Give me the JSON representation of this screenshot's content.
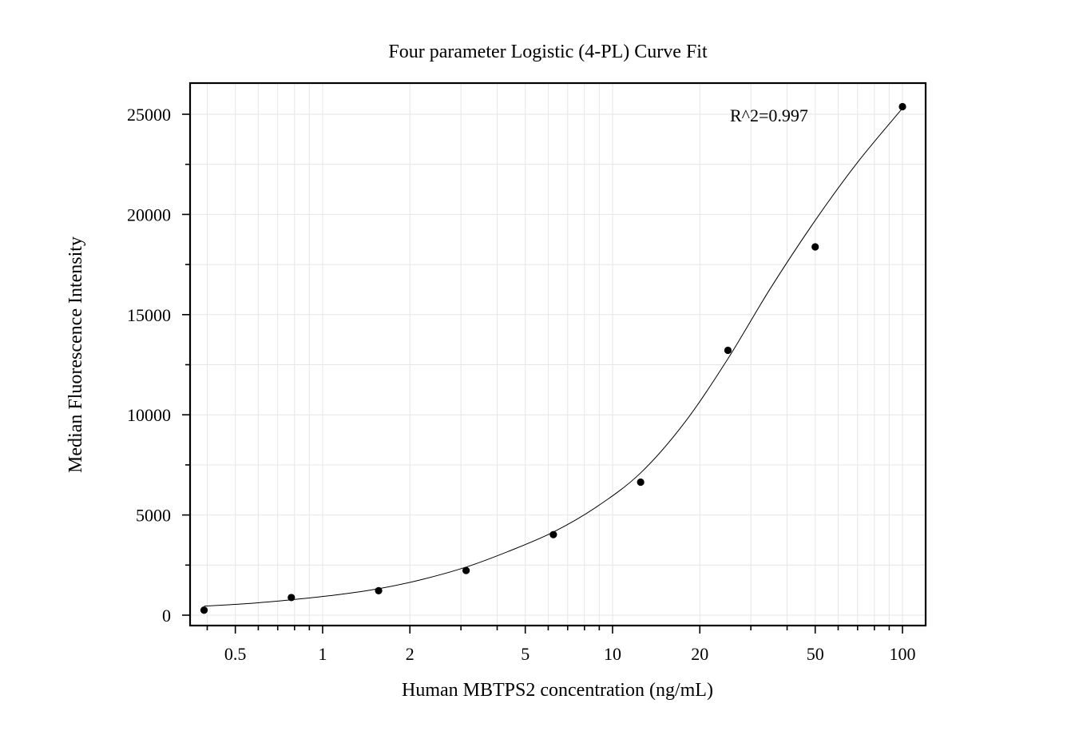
{
  "chart_data": {
    "type": "scatter",
    "title": "Four parameter Logistic (4-PL) Curve Fit",
    "xlabel": "Human MBTPS2 concentration (ng/mL)",
    "ylabel": "Median Fluorescence Intensity",
    "x_scale": "log",
    "xlim": [
      0.39,
      100
    ],
    "ylim": [
      0,
      25000
    ],
    "x_ticks": [
      0.5,
      1,
      2,
      5,
      10,
      20,
      50,
      100
    ],
    "x_tick_labels": [
      "0.5",
      "1",
      "2",
      "5",
      "10",
      "20",
      "50",
      "100"
    ],
    "y_ticks": [
      0,
      5000,
      10000,
      15000,
      20000,
      25000
    ],
    "y_tick_labels": [
      "0",
      "5000",
      "10000",
      "15000",
      "20000",
      "25000"
    ],
    "grid": true,
    "annotation": "R^2=0.997",
    "points": {
      "x": [
        0.39,
        0.78,
        1.56,
        3.125,
        6.25,
        12.5,
        25,
        50,
        100
      ],
      "y": [
        250,
        880,
        1220,
        2230,
        4020,
        6640,
        13220,
        18380,
        25380
      ]
    },
    "fit_curve": {
      "model": "4-PL",
      "x": [
        0.39,
        0.55,
        0.78,
        1.1,
        1.56,
        2.2,
        3.125,
        4.4,
        6.25,
        8.8,
        12.5,
        17.7,
        25,
        35,
        50,
        70,
        100
      ],
      "y": [
        450,
        580,
        770,
        1000,
        1320,
        1780,
        2400,
        3200,
        4150,
        5400,
        7100,
        9600,
        12800,
        16300,
        19700,
        22600,
        25300
      ]
    }
  }
}
